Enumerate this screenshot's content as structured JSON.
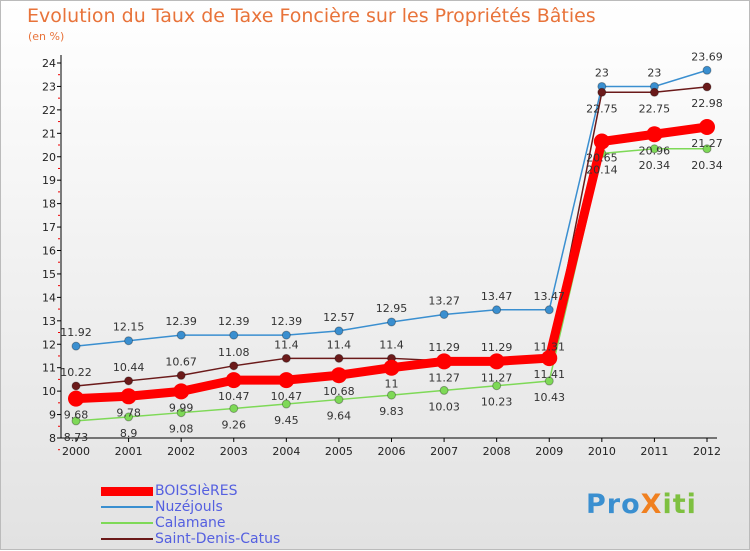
{
  "title": "Evolution du Taux de Taxe Foncière sur les Propriétés Bâties",
  "unit": "(en %)",
  "logo": "ProXiti",
  "chart_data": {
    "type": "line",
    "title": "Evolution du Taux de Taxe Foncière sur les Propriétés Bâties",
    "ylabel": "(en %)",
    "x": [
      "2000",
      "2001",
      "2002",
      "2003",
      "2004",
      "2005",
      "2006",
      "2007",
      "2008",
      "2009",
      "2010",
      "2011",
      "2012"
    ],
    "ylim": [
      8,
      24
    ],
    "yticks": [
      "8",
      "9",
      "10",
      "11",
      "12",
      "13",
      "14",
      "15",
      "16",
      "17",
      "18",
      "19",
      "20",
      "21",
      "22",
      "23",
      "24"
    ],
    "legend_position": "bottom-left",
    "series": [
      {
        "name": "BOISSIèRES",
        "color": "#ff0000",
        "values": [
          9.68,
          9.78,
          9.99,
          10.47,
          10.47,
          10.68,
          11,
          11.27,
          11.27,
          11.41,
          20.65,
          20.96,
          21.27
        ]
      },
      {
        "name": "Nuzéjouls",
        "color": "#3a8fd0",
        "values": [
          11.92,
          12.15,
          12.39,
          12.39,
          12.39,
          12.57,
          12.95,
          13.27,
          13.47,
          13.47,
          23,
          23,
          23.69
        ]
      },
      {
        "name": "Calamane",
        "color": "#7ed957",
        "values": [
          8.73,
          8.9,
          9.08,
          9.26,
          9.45,
          9.64,
          9.83,
          10.03,
          10.23,
          10.43,
          20.14,
          20.34,
          20.34
        ]
      },
      {
        "name": "Saint-Denis-Catus",
        "color": "#6b1a1a",
        "values": [
          10.22,
          10.44,
          10.67,
          11.08,
          11.4,
          11.4,
          11.4,
          11.29,
          11.29,
          11.31,
          22.75,
          22.75,
          22.98
        ]
      }
    ]
  }
}
